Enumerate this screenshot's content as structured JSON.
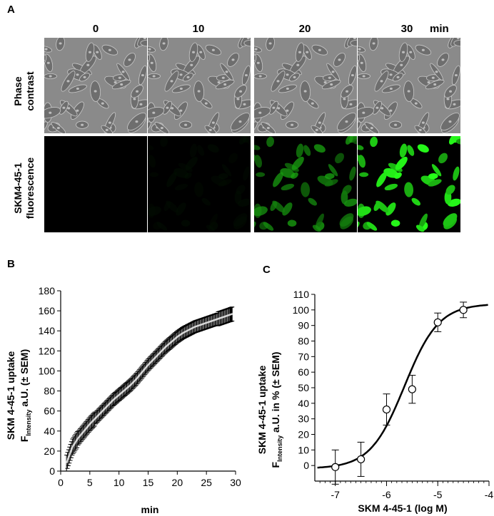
{
  "panel_a": {
    "letter": "A",
    "time_labels": [
      "0",
      "10",
      "20",
      "30"
    ],
    "time_unit": "min",
    "row1_label": [
      "Phase",
      "contrast"
    ],
    "row2_label": [
      "SKM4-45-1",
      "fluorescence"
    ],
    "fluorescence_levels": [
      0.0,
      0.08,
      0.65,
      1.0
    ]
  },
  "panel_b": {
    "letter": "B",
    "ylabel_line1": "SKM 4-45-1 uptake",
    "ylabel_f": "F",
    "ylabel_sub": "Intensity",
    "ylabel_rest": " a.U. (± SEM)",
    "xlabel": "min"
  },
  "panel_c": {
    "letter": "C",
    "ylabel_line1": "SKM 4-45-1 uptake",
    "ylabel_f": "F",
    "ylabel_sub": "Intensity",
    "ylabel_rest": " a.U. in % (± SEM)",
    "xlabel": "SKM 4-45-1 (log M)"
  },
  "chart_data": [
    {
      "type": "line",
      "panel": "B",
      "xlabel": "min",
      "ylabel": "SKM 4-45-1 uptake F Intensity a.U. (± SEM)",
      "xlim": [
        0,
        30
      ],
      "ylim": [
        0,
        180
      ],
      "xticks": [
        0,
        5,
        10,
        15,
        20,
        25,
        30
      ],
      "yticks": [
        0,
        20,
        40,
        60,
        80,
        100,
        120,
        140,
        160,
        180
      ],
      "x": [
        1,
        2,
        3,
        4,
        5,
        6,
        7,
        8,
        9,
        10,
        11,
        12,
        13,
        14,
        15,
        16,
        17,
        18,
        19,
        20,
        21,
        22,
        23,
        24,
        25,
        26,
        27,
        28,
        29,
        29.5
      ],
      "y": [
        8,
        24,
        33,
        40,
        47,
        53,
        59,
        65,
        71,
        76,
        81,
        86,
        92,
        99,
        106,
        112,
        118,
        124,
        129,
        134,
        138,
        141,
        144,
        146,
        148,
        150,
        152,
        154,
        156,
        157
      ],
      "sem": [
        8,
        8,
        7,
        7,
        7,
        6,
        6,
        6,
        6,
        6,
        6,
        6,
        6,
        6,
        6,
        6,
        6,
        6,
        6,
        6,
        6,
        6,
        6,
        6,
        6,
        6,
        7,
        7,
        7,
        7
      ]
    },
    {
      "type": "scatter",
      "panel": "C",
      "xlabel": "SKM 4-45-1 (log M)",
      "ylabel": "SKM 4-45-1 uptake F Intensity a.U. in % (± SEM)",
      "xlim": [
        -7.4,
        -4
      ],
      "ylim": [
        -10,
        110
      ],
      "xticks": [
        -7,
        -6,
        -5,
        -4
      ],
      "yticks": [
        0,
        10,
        20,
        30,
        40,
        50,
        60,
        70,
        80,
        90,
        100,
        110
      ],
      "x": [
        -7.0,
        -6.5,
        -6.0,
        -5.5,
        -5.0,
        -4.5
      ],
      "y": [
        -1,
        4,
        36,
        49,
        92,
        100
      ],
      "sem": [
        11,
        11,
        10,
        9,
        6,
        5
      ],
      "fit": {
        "model": "sigmoid",
        "bottom": -2,
        "top": 104,
        "log_ec50": -5.65,
        "hill": 1.3
      }
    }
  ]
}
